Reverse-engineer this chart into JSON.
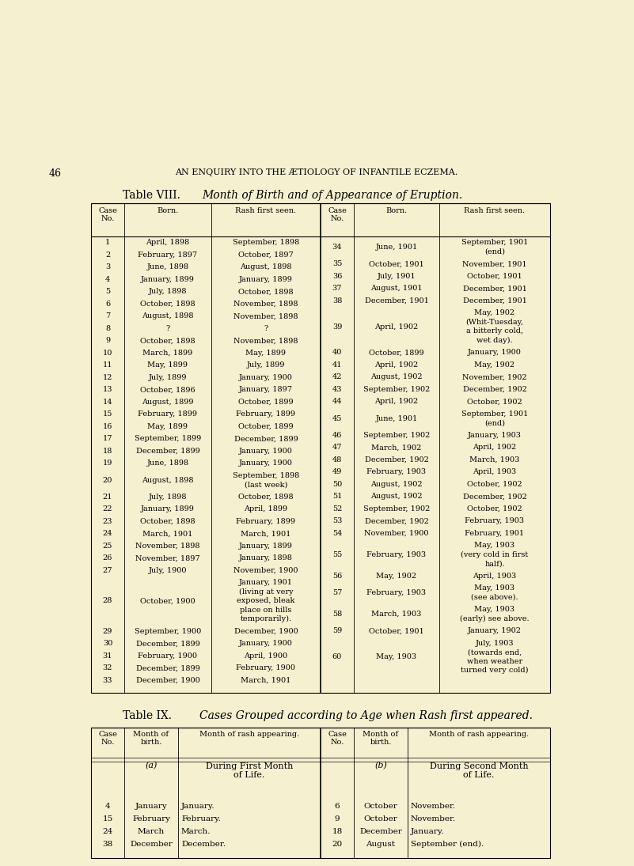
{
  "bg_color": "#f5f0d0",
  "page_num": "46",
  "page_header": "AN ENQUIRY INTO THE ÆTIOLOGY OF INFANTILE ECZEMA.",
  "table8_title_roman": "Table VIII.",
  "table8_title_italic": "Month of Birth and of Appearance of Eruption.",
  "table9_title_roman": "Table IX.",
  "table9_title_italic": "Cases Grouped according to Age when Rash first appeared.",
  "table8_col_headers": [
    "Case\nNo.",
    "Born.",
    "Rash first seen.",
    "Case\nNo.",
    "Born.",
    "Rash first seen."
  ],
  "table8_rows_left": [
    [
      "1",
      "April, 1898",
      "September, 1898"
    ],
    [
      "2",
      "February, 1897",
      "October, 1897"
    ],
    [
      "3",
      "June, 1898",
      "August, 1898"
    ],
    [
      "4",
      "January, 1899",
      "January, 1899"
    ],
    [
      "5",
      "July, 1898",
      "October, 1898"
    ],
    [
      "6",
      "October, 1898",
      "November, 1898"
    ],
    [
      "7",
      "August, 1898",
      "November, 1898"
    ],
    [
      "8",
      "?",
      "?"
    ],
    [
      "9",
      "October, 1898",
      "November, 1898"
    ],
    [
      "10",
      "March, 1899",
      "May, 1899"
    ],
    [
      "11",
      "May, 1899",
      "July, 1899"
    ],
    [
      "12",
      "July, 1899",
      "January, 1900"
    ],
    [
      "13",
      "October, 1896",
      "January, 1897"
    ],
    [
      "14",
      "August, 1899",
      "October, 1899"
    ],
    [
      "15",
      "February, 1899",
      "February, 1899"
    ],
    [
      "16",
      "May, 1899",
      "October, 1899"
    ],
    [
      "17",
      "September, 1899",
      "December, 1899"
    ],
    [
      "18",
      "December, 1899",
      "January, 1900"
    ],
    [
      "19",
      "June, 1898",
      "January, 1900"
    ],
    [
      "20",
      "August, 1898",
      "September, 1898\n(last week)"
    ],
    [
      "21",
      "July, 1898",
      "October, 1898"
    ],
    [
      "22",
      "January, 1899",
      "April, 1899"
    ],
    [
      "23",
      "October, 1898",
      "February, 1899"
    ],
    [
      "24",
      "March, 1901",
      "March, 1901"
    ],
    [
      "25",
      "November, 1898",
      "January, 1899"
    ],
    [
      "26",
      "November, 1897",
      "January, 1898"
    ],
    [
      "27",
      "July, 1900",
      "November, 1900"
    ],
    [
      "28",
      "October, 1900",
      "January, 1901\n(living at very\nexposed, bleak\nplace on hills\ntemporarily)."
    ],
    [
      "29",
      "September, 1900",
      "December, 1900"
    ],
    [
      "30",
      "December, 1899",
      "January, 1900"
    ],
    [
      "31",
      "February, 1900",
      "April, 1900"
    ],
    [
      "32",
      "December, 1899",
      "February, 1900"
    ],
    [
      "33",
      "December, 1900",
      "March, 1901"
    ]
  ],
  "table8_rows_right": [
    [
      "34",
      "June, 1901",
      "September, 1901\n(end)"
    ],
    [
      "35",
      "October, 1901",
      "November, 1901"
    ],
    [
      "36",
      "July, 1901",
      "October, 1901"
    ],
    [
      "37",
      "August, 1901",
      "December, 1901"
    ],
    [
      "38",
      "December, 1901",
      "December, 1901"
    ],
    [
      "39",
      "April, 1902",
      "May, 1902\n(Whit-Tuesday,\na bitterly cold,\nwet day)."
    ],
    [
      "40",
      "October, 1899",
      "January, 1900"
    ],
    [
      "41",
      "April, 1902",
      "May, 1902"
    ],
    [
      "42",
      "August, 1902",
      "November, 1902"
    ],
    [
      "43",
      "September, 1902",
      "December, 1902"
    ],
    [
      "44",
      "April, 1902",
      "October, 1902"
    ],
    [
      "45",
      "June, 1901",
      "September, 1901\n(end)"
    ],
    [
      "46",
      "September, 1902",
      "January, 1903"
    ],
    [
      "47",
      "March, 1902",
      "April, 1902"
    ],
    [
      "48",
      "December, 1902",
      "March, 1903"
    ],
    [
      "49",
      "February, 1903",
      "April, 1903"
    ],
    [
      "50",
      "August, 1902",
      "October, 1902"
    ],
    [
      "51",
      "August, 1902",
      "December, 1902"
    ],
    [
      "52",
      "September, 1902",
      "October, 1902"
    ],
    [
      "53",
      "December, 1902",
      "February, 1903"
    ],
    [
      "54",
      "November, 1900",
      "February, 1901"
    ],
    [
      "55",
      "February, 1903",
      "May, 1903\n(very cold in first\nhalf)."
    ],
    [
      "56",
      "May, 1902",
      "April, 1903"
    ],
    [
      "57",
      "February, 1903",
      "May, 1903\n(see above)."
    ],
    [
      "58",
      "March, 1903",
      "May, 1903\n(early) see above."
    ],
    [
      "59",
      "October, 1901",
      "January, 1902"
    ],
    [
      "60",
      "May, 1903",
      "July, 1903\n(towards end,\nwhen weather\nturned very cold)"
    ]
  ],
  "table9_col_headers": [
    "Case\nNo.",
    "Month of\nbirth.",
    "Month of rash appearing.",
    "Case\nNo.",
    "Month of\nbirth.",
    "Month of rash appearing."
  ],
  "table9_rows_left": [
    [
      "4",
      "January",
      "January."
    ],
    [
      "15",
      "February",
      "February."
    ],
    [
      "24",
      "March",
      "March."
    ],
    [
      "38",
      "December",
      "December."
    ]
  ],
  "table9_rows_right": [
    [
      "6",
      "October",
      "November."
    ],
    [
      "9",
      "October",
      "November."
    ],
    [
      "18",
      "December",
      "January."
    ],
    [
      "20",
      "August",
      "September (end)."
    ]
  ]
}
